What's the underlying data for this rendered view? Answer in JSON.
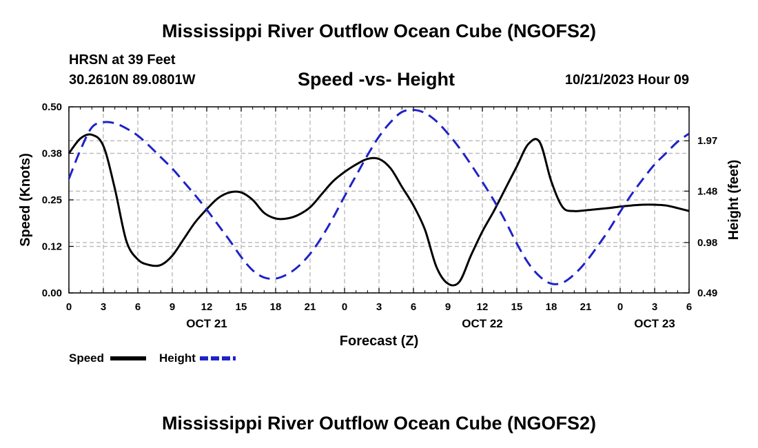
{
  "page": {
    "title": "Mississippi River Outflow Ocean Cube (NGOFS2)",
    "subtitle": "Speed -vs- Height",
    "station": "HRSN at 39 Feet",
    "coordinates": "30.2610N  89.0801W",
    "datetime": "10/21/2023 Hour 09",
    "footer_title": "Mississippi River Outflow Ocean Cube (NGOFS2)"
  },
  "chart_data": {
    "type": "line",
    "xlabel": "Forecast (Z)",
    "ylabel": "Speed (Knots)",
    "y2label": "Height (feet)",
    "xlim": [
      0,
      54
    ],
    "ylim": [
      0,
      0.5
    ],
    "y2lim": [
      0.49,
      2.3
    ],
    "grid": true,
    "x_ticks": [
      0,
      3,
      6,
      9,
      12,
      15,
      18,
      21,
      24,
      27,
      30,
      33,
      36,
      39,
      42,
      45,
      48,
      51,
      54
    ],
    "x_tick_labels": [
      "0",
      "3",
      "6",
      "9",
      "12",
      "15",
      "18",
      "21",
      "0",
      "3",
      "6",
      "9",
      "12",
      "15",
      "18",
      "21",
      "0",
      "3",
      "6"
    ],
    "date_labels": [
      {
        "x": 12,
        "text": "OCT 21"
      },
      {
        "x": 36,
        "text": "OCT 22"
      },
      {
        "x": 51,
        "text": "OCT 23"
      }
    ],
    "y_ticks": [
      0,
      0.125,
      0.25,
      0.375,
      0.5
    ],
    "y_tick_labels": [
      "0.00",
      "0.12",
      "0.25",
      "0.38",
      "0.50"
    ],
    "y2_ticks": [
      0.49,
      0.98,
      1.48,
      1.97
    ],
    "y2_tick_labels": [
      "0.49",
      "0.98",
      "1.48",
      "1.97"
    ],
    "series": [
      {
        "name": "Speed",
        "axis": "left",
        "color": "#000000",
        "dash": "solid",
        "x": [
          0,
          1,
          2,
          3,
          4,
          5,
          6,
          7,
          8,
          9,
          10,
          11,
          12,
          13,
          14,
          15,
          16,
          17,
          18,
          19,
          20,
          21,
          22,
          23,
          24,
          25,
          26,
          27,
          28,
          29,
          30,
          31,
          32,
          33,
          34,
          35,
          36,
          37,
          38,
          39,
          40,
          41,
          42,
          43,
          44,
          45,
          46,
          47,
          48,
          49,
          50,
          51,
          52,
          53,
          54
        ],
        "values": [
          0.375,
          0.415,
          0.425,
          0.395,
          0.28,
          0.14,
          0.09,
          0.075,
          0.075,
          0.1,
          0.145,
          0.19,
          0.225,
          0.255,
          0.27,
          0.27,
          0.25,
          0.215,
          0.2,
          0.2,
          0.21,
          0.23,
          0.265,
          0.3,
          0.325,
          0.345,
          0.36,
          0.36,
          0.335,
          0.285,
          0.235,
          0.17,
          0.07,
          0.025,
          0.03,
          0.1,
          0.165,
          0.22,
          0.28,
          0.34,
          0.4,
          0.405,
          0.3,
          0.23,
          0.22,
          0.222,
          0.225,
          0.228,
          0.232,
          0.235,
          0.237,
          0.237,
          0.235,
          0.228,
          0.22
        ]
      },
      {
        "name": "Height",
        "axis": "right",
        "color": "#1e22c8",
        "dash": "dashed",
        "x": [
          0,
          1,
          2,
          3,
          4,
          5,
          6,
          7,
          8,
          9,
          10,
          11,
          12,
          13,
          14,
          15,
          16,
          17,
          18,
          19,
          20,
          21,
          22,
          23,
          24,
          25,
          26,
          27,
          28,
          29,
          30,
          31,
          32,
          33,
          34,
          35,
          36,
          37,
          38,
          39,
          40,
          41,
          42,
          43,
          44,
          45,
          46,
          47,
          48,
          49,
          50,
          51,
          52,
          53,
          54
        ],
        "values": [
          1.6,
          1.88,
          2.1,
          2.15,
          2.14,
          2.09,
          2.02,
          1.92,
          1.81,
          1.7,
          1.57,
          1.44,
          1.3,
          1.15,
          1.0,
          0.84,
          0.71,
          0.64,
          0.63,
          0.67,
          0.75,
          0.87,
          1.03,
          1.22,
          1.43,
          1.63,
          1.83,
          2.01,
          2.15,
          2.25,
          2.27,
          2.24,
          2.16,
          2.04,
          1.9,
          1.74,
          1.57,
          1.39,
          1.19,
          0.97,
          0.78,
          0.65,
          0.58,
          0.59,
          0.67,
          0.79,
          0.94,
          1.1,
          1.28,
          1.45,
          1.6,
          1.74,
          1.85,
          1.96,
          2.04
        ]
      }
    ]
  },
  "legend": {
    "items": [
      {
        "label": "Speed",
        "color": "#000000",
        "dash": "solid"
      },
      {
        "label": "Height",
        "color": "#1e22c8",
        "dash": "dashed"
      }
    ]
  }
}
